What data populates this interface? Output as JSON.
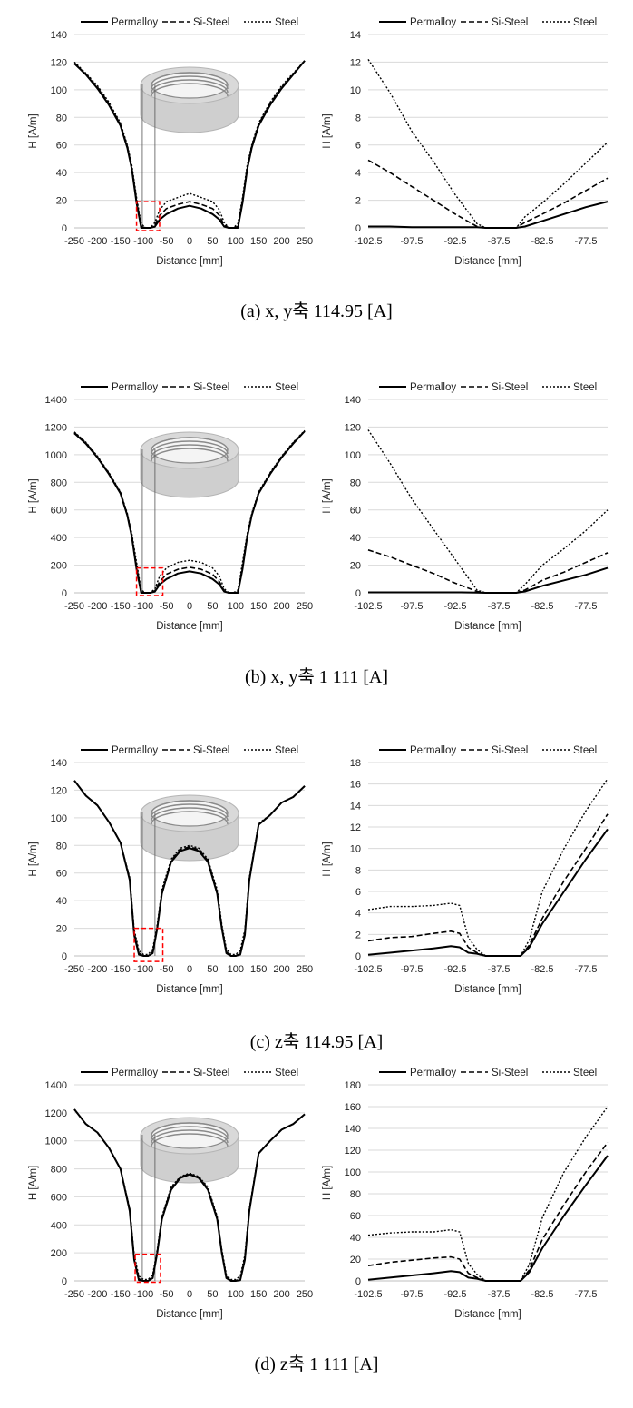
{
  "legend_labels": [
    "Permalloy",
    "Si-Steel",
    "Steel"
  ],
  "colors": {
    "line": "#000000",
    "grid": "#d9d9d9",
    "highlight": "#ff0000",
    "ring_outer": "#cfcfcf",
    "ring_inner": "#8a8a8a"
  },
  "captions": [
    "(a) x, y축 114.95 [A]",
    "(b) x, y축 1 111 [A]",
    "(c) z축 114.95 [A]",
    "(d) z축 1 111 [A]"
  ],
  "chart_data": [
    {
      "type": "line",
      "panel": "a-left",
      "xlabel": "Distance [mm]",
      "ylabel": "H [A/m]",
      "xlim": [
        -250,
        250
      ],
      "ylim": [
        0,
        140
      ],
      "xticks": [
        "-250",
        "-200",
        "-150",
        "-100",
        "-50",
        "0",
        "50",
        "100",
        "150",
        "200",
        "250"
      ],
      "yticks": [
        "0",
        "20",
        "40",
        "60",
        "80",
        "100",
        "120",
        "140"
      ],
      "grid": "horizontal",
      "legend": "top",
      "inset_image": "ring-icon",
      "highlight_box": [
        -115,
        -65,
        -2,
        19
      ],
      "x": [
        -250,
        -225,
        -200,
        -175,
        -150,
        -135,
        -125,
        -115,
        -105,
        -95,
        -85,
        -75,
        -65,
        -50,
        -25,
        0,
        25,
        50,
        65,
        75,
        85,
        95,
        105,
        115,
        125,
        135,
        150,
        175,
        200,
        225,
        250
      ],
      "series": [
        {
          "name": "Permalloy",
          "values": [
            119,
            111,
            101,
            89,
            74,
            58,
            42,
            18,
            0,
            0,
            0,
            1,
            6,
            10,
            14,
            16,
            14,
            10,
            6,
            1,
            0,
            0,
            0,
            18,
            42,
            58,
            74,
            89,
            101,
            111,
            121
          ]
        },
        {
          "name": "Si-Steel",
          "values": [
            119,
            111,
            102,
            90,
            75,
            59,
            43,
            20,
            1,
            0,
            0,
            2,
            9,
            14,
            17,
            19,
            17,
            14,
            9,
            2,
            0,
            0,
            1,
            20,
            43,
            59,
            75,
            90,
            102,
            111,
            121
          ]
        },
        {
          "name": "Steel",
          "values": [
            120,
            112,
            103,
            91,
            76,
            60,
            45,
            22,
            3,
            0,
            0,
            4,
            13,
            19,
            22,
            25,
            22,
            19,
            13,
            4,
            0,
            0,
            3,
            22,
            45,
            60,
            76,
            91,
            103,
            112,
            121
          ]
        }
      ]
    },
    {
      "type": "line",
      "panel": "a-right",
      "xlabel": "Distance [mm]",
      "ylabel": "H [A/m]",
      "xlim": [
        -102.5,
        -75
      ],
      "ylim": [
        0,
        14
      ],
      "xticks": [
        "-102.5",
        "-97.5",
        "-92.5",
        "-87.5",
        "-82.5",
        "-77.5"
      ],
      "yticks": [
        "0",
        "2",
        "4",
        "6",
        "8",
        "10",
        "12",
        "14"
      ],
      "grid": "horizontal",
      "legend": "top",
      "x": [
        -102.5,
        -100,
        -97.5,
        -95,
        -92.5,
        -90,
        -89,
        -87.5,
        -85.5,
        -84.5,
        -82.5,
        -80,
        -77.5,
        -75
      ],
      "series": [
        {
          "name": "Permalloy",
          "values": [
            0.1,
            0.1,
            0.05,
            0.05,
            0.05,
            0.05,
            0,
            0,
            0,
            0.1,
            0.5,
            1,
            1.5,
            1.9
          ]
        },
        {
          "name": "Si-Steel",
          "values": [
            4.9,
            4,
            3,
            2,
            1,
            0.1,
            0,
            0,
            0,
            0.4,
            1,
            1.8,
            2.7,
            3.6
          ]
        },
        {
          "name": "Steel",
          "values": [
            12.2,
            9.8,
            7,
            4.8,
            2.4,
            0.3,
            0,
            0,
            0,
            0.8,
            1.8,
            3.2,
            4.7,
            6.2
          ]
        }
      ]
    },
    {
      "type": "line",
      "panel": "b-left",
      "xlabel": "Distance [mm]",
      "ylabel": "H [A/m]",
      "xlim": [
        -250,
        250
      ],
      "ylim": [
        0,
        1400
      ],
      "xticks": [
        "-250",
        "-200",
        "-150",
        "-100",
        "-50",
        "0",
        "50",
        "100",
        "150",
        "200",
        "250"
      ],
      "yticks": [
        "0",
        "200",
        "400",
        "600",
        "800",
        "1000",
        "1200",
        "1400"
      ],
      "grid": "horizontal",
      "legend": "top",
      "inset_image": "ring-icon",
      "highlight_box": [
        -115,
        -58,
        -20,
        180
      ],
      "x": [
        -250,
        -225,
        -200,
        -175,
        -150,
        -135,
        -125,
        -115,
        -105,
        -95,
        -85,
        -75,
        -65,
        -50,
        -25,
        0,
        25,
        50,
        65,
        75,
        85,
        95,
        105,
        115,
        125,
        135,
        150,
        175,
        200,
        225,
        250
      ],
      "series": [
        {
          "name": "Permalloy",
          "values": [
            1155,
            1080,
            980,
            860,
            720,
            560,
            400,
            170,
            0,
            0,
            0,
            10,
            60,
            100,
            140,
            155,
            140,
            100,
            60,
            10,
            0,
            0,
            0,
            170,
            400,
            560,
            720,
            860,
            980,
            1080,
            1170
          ]
        },
        {
          "name": "Si-Steel",
          "values": [
            1160,
            1085,
            985,
            865,
            725,
            565,
            410,
            190,
            5,
            0,
            0,
            15,
            80,
            135,
            170,
            185,
            170,
            135,
            80,
            15,
            0,
            0,
            5,
            190,
            410,
            565,
            725,
            865,
            985,
            1085,
            1170
          ]
        },
        {
          "name": "Steel",
          "values": [
            1165,
            1090,
            990,
            870,
            730,
            575,
            425,
            220,
            20,
            0,
            0,
            30,
            120,
            180,
            220,
            235,
            220,
            180,
            120,
            30,
            0,
            0,
            20,
            220,
            425,
            575,
            730,
            870,
            990,
            1090,
            1175
          ]
        }
      ]
    },
    {
      "type": "line",
      "panel": "b-right",
      "xlabel": "Distance [mm]",
      "ylabel": "H [A/m]",
      "xlim": [
        -102.5,
        -75
      ],
      "ylim": [
        0,
        140
      ],
      "xticks": [
        "-102.5",
        "-97.5",
        "-92.5",
        "-87.5",
        "-82.5",
        "-77.5"
      ],
      "yticks": [
        "0",
        "20",
        "40",
        "60",
        "80",
        "100",
        "120",
        "140"
      ],
      "grid": "horizontal",
      "legend": "top",
      "x": [
        -102.5,
        -100,
        -97.5,
        -95,
        -92.5,
        -90,
        -89,
        -87.5,
        -85.5,
        -84.5,
        -82.5,
        -80,
        -77.5,
        -75
      ],
      "series": [
        {
          "name": "Permalloy",
          "values": [
            0.3,
            0.3,
            0.3,
            0.3,
            0.3,
            0.2,
            0,
            0,
            0,
            1,
            5,
            9,
            13,
            18
          ]
        },
        {
          "name": "Si-Steel",
          "values": [
            31,
            26,
            20,
            14,
            7,
            1,
            0,
            0,
            0,
            2,
            9,
            15,
            22,
            29
          ]
        },
        {
          "name": "Steel",
          "values": [
            118,
            94,
            68,
            46,
            24,
            2,
            0,
            0,
            0,
            6,
            20,
            32,
            45,
            60
          ]
        }
      ]
    },
    {
      "type": "line",
      "panel": "c-left",
      "xlabel": "Distance [mm]",
      "ylabel": "H [A/m]",
      "xlim": [
        -250,
        250
      ],
      "ylim": [
        0,
        140
      ],
      "xticks": [
        "-250",
        "-200",
        "-150",
        "-100",
        "-50",
        "0",
        "50",
        "100",
        "150",
        "200",
        "250"
      ],
      "yticks": [
        "0",
        "20",
        "40",
        "60",
        "80",
        "100",
        "120",
        "140"
      ],
      "grid": "horizontal",
      "legend": "top",
      "inset_image": "ring-icon",
      "highlight_box": [
        -120,
        -58,
        -4,
        20
      ],
      "x": [
        -250,
        -225,
        -200,
        -175,
        -150,
        -130,
        -120,
        -110,
        -100,
        -90,
        -80,
        -70,
        -60,
        -40,
        -20,
        0,
        20,
        40,
        60,
        70,
        80,
        90,
        100,
        110,
        120,
        130,
        150,
        175,
        200,
        225,
        250
      ],
      "series": [
        {
          "name": "Permalloy",
          "values": [
            127,
            116,
            109,
            97,
            82,
            55,
            15,
            1,
            0,
            0,
            2,
            20,
            45,
            68,
            76,
            78,
            76,
            68,
            45,
            20,
            2,
            0,
            0,
            1,
            15,
            55,
            95,
            102,
            111,
            115,
            123
          ]
        },
        {
          "name": "Si-Steel",
          "values": [
            127,
            116,
            109,
            97,
            82,
            56,
            17,
            2,
            0,
            0,
            3,
            21,
            46,
            69,
            77,
            79,
            77,
            69,
            46,
            21,
            3,
            0,
            0,
            2,
            17,
            56,
            95,
            102,
            111,
            115,
            123
          ]
        },
        {
          "name": "Steel",
          "values": [
            127,
            116,
            109,
            97,
            82,
            57,
            19,
            4,
            1,
            1,
            5,
            23,
            48,
            70,
            78,
            80,
            78,
            70,
            48,
            23,
            5,
            1,
            1,
            4,
            19,
            57,
            96,
            102,
            111,
            115,
            123
          ]
        }
      ]
    },
    {
      "type": "line",
      "panel": "c-right",
      "xlabel": "Distance [mm]",
      "ylabel": "H [A/m]",
      "xlim": [
        -102.5,
        -75
      ],
      "ylim": [
        0,
        18
      ],
      "xticks": [
        "-102.5",
        "-97.5",
        "-92.5",
        "-87.5",
        "-82.5",
        "-77.5"
      ],
      "yticks": [
        "0",
        "2",
        "4",
        "6",
        "8",
        "10",
        "12",
        "14",
        "16",
        "18"
      ],
      "grid": "horizontal",
      "legend": "top",
      "x": [
        -102.5,
        -100,
        -97.5,
        -95,
        -93,
        -92,
        -91,
        -90,
        -89,
        -87.5,
        -85,
        -84,
        -82.5,
        -80,
        -77.5,
        -75
      ],
      "series": [
        {
          "name": "Permalloy",
          "values": [
            0.1,
            0.3,
            0.5,
            0.7,
            0.9,
            0.8,
            0.3,
            0.2,
            0,
            0,
            0,
            0.8,
            3,
            6,
            9,
            11.8
          ]
        },
        {
          "name": "Si-Steel",
          "values": [
            1.4,
            1.7,
            1.8,
            2.1,
            2.3,
            2.1,
            0.8,
            0.3,
            0,
            0,
            0,
            1,
            3.5,
            7,
            10,
            13.2
          ]
        },
        {
          "name": "Steel",
          "values": [
            4.3,
            4.6,
            4.6,
            4.7,
            4.9,
            4.7,
            1.7,
            0.6,
            0,
            0,
            0,
            1.5,
            6,
            10,
            13.5,
            16.5
          ]
        }
      ]
    },
    {
      "type": "line",
      "panel": "d-left",
      "xlabel": "Distance [mm]",
      "ylabel": "H [A/m]",
      "xlim": [
        -250,
        250
      ],
      "ylim": [
        0,
        1400
      ],
      "xticks": [
        "-250",
        "-200",
        "-150",
        "-100",
        "-50",
        "0",
        "50",
        "100",
        "150",
        "200",
        "250"
      ],
      "yticks": [
        "0",
        "200",
        "400",
        "600",
        "800",
        "1000",
        "1200",
        "1400"
      ],
      "grid": "horizontal",
      "legend": "top",
      "inset_image": "ring-icon",
      "highlight_box": [
        -118,
        -63,
        -10,
        190
      ],
      "x": [
        -250,
        -225,
        -200,
        -175,
        -150,
        -130,
        -120,
        -110,
        -100,
        -90,
        -80,
        -70,
        -60,
        -40,
        -20,
        0,
        20,
        40,
        60,
        70,
        80,
        90,
        100,
        110,
        120,
        130,
        150,
        175,
        200,
        225,
        250
      ],
      "series": [
        {
          "name": "Permalloy",
          "values": [
            1225,
            1120,
            1060,
            950,
            800,
            500,
            150,
            5,
            0,
            0,
            20,
            200,
            440,
            650,
            735,
            760,
            735,
            650,
            440,
            200,
            20,
            0,
            0,
            5,
            150,
            500,
            910,
            1000,
            1080,
            1120,
            1190
          ]
        },
        {
          "name": "Si-Steel",
          "values": [
            1225,
            1120,
            1060,
            950,
            800,
            510,
            165,
            15,
            0,
            0,
            30,
            210,
            450,
            660,
            740,
            765,
            740,
            660,
            450,
            210,
            30,
            0,
            0,
            15,
            165,
            510,
            910,
            1000,
            1080,
            1120,
            1190
          ]
        },
        {
          "name": "Steel",
          "values": [
            1225,
            1120,
            1060,
            950,
            800,
            520,
            185,
            35,
            10,
            10,
            45,
            225,
            460,
            670,
            745,
            770,
            745,
            670,
            460,
            225,
            45,
            10,
            10,
            35,
            185,
            520,
            915,
            1000,
            1080,
            1120,
            1190
          ]
        }
      ]
    },
    {
      "type": "line",
      "panel": "d-right",
      "xlabel": "Distance [mm]",
      "ylabel": "H [A/m]",
      "xlim": [
        -102.5,
        -75
      ],
      "ylim": [
        0,
        180
      ],
      "xticks": [
        "-102.5",
        "-97.5",
        "-92.5",
        "-87.5",
        "-82.5",
        "-77.5"
      ],
      "yticks": [
        "0",
        "20",
        "40",
        "60",
        "80",
        "100",
        "120",
        "140",
        "160",
        "180"
      ],
      "grid": "horizontal",
      "legend": "top",
      "x": [
        -102.5,
        -100,
        -97.5,
        -95,
        -93,
        -92,
        -91,
        -90,
        -89,
        -87.5,
        -85,
        -84,
        -82.5,
        -80,
        -77.5,
        -75
      ],
      "series": [
        {
          "name": "Permalloy",
          "values": [
            1,
            3,
            5,
            7,
            9,
            8,
            3,
            2,
            0,
            0,
            0,
            8,
            30,
            60,
            88,
            115
          ]
        },
        {
          "name": "Si-Steel",
          "values": [
            14,
            17,
            19,
            21,
            22,
            20,
            7,
            3,
            0,
            0,
            0,
            10,
            38,
            70,
            100,
            127
          ]
        },
        {
          "name": "Steel",
          "values": [
            42,
            44,
            45,
            45,
            47,
            45,
            16,
            6,
            0,
            0,
            0,
            15,
            58,
            100,
            132,
            160
          ]
        }
      ]
    }
  ]
}
